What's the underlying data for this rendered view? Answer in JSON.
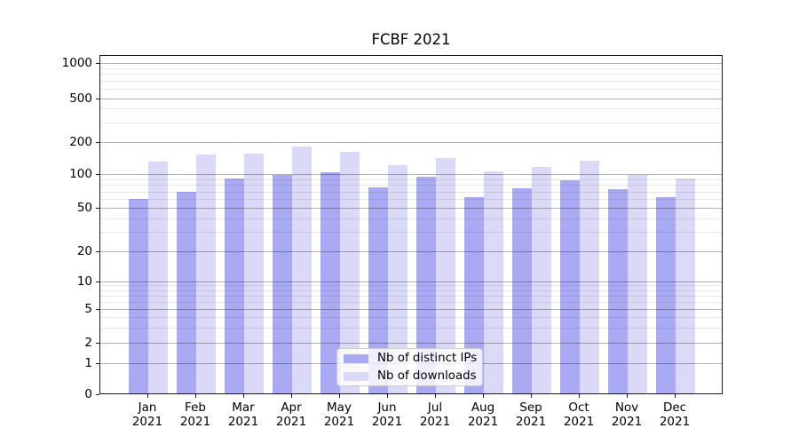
{
  "chart_data": {
    "type": "bar",
    "title": "FCBF 2021",
    "categories": [
      "Jan",
      "Feb",
      "Mar",
      "Apr",
      "May",
      "Jun",
      "Jul",
      "Aug",
      "Sep",
      "Oct",
      "Nov",
      "Dec"
    ],
    "category_year": "2021",
    "series": [
      {
        "name": "Nb of distinct IPs",
        "color": "#a9a9f4",
        "values": [
          60,
          69,
          91,
          98,
          105,
          76,
          96,
          62,
          75,
          88,
          74,
          62
        ]
      },
      {
        "name": "Nb of downloads",
        "color": "#dadaf8",
        "values": [
          132,
          153,
          155,
          181,
          162,
          122,
          141,
          107,
          118,
          133,
          99,
          92
        ]
      }
    ],
    "y_ticks": [
      0,
      1,
      2,
      5,
      10,
      20,
      50,
      100,
      200,
      500,
      1000
    ],
    "y_minor_ticks": [
      3,
      4,
      6,
      7,
      8,
      9,
      30,
      40,
      60,
      70,
      80,
      90,
      300,
      400,
      600,
      700,
      800,
      900
    ],
    "y_scale": "log",
    "ylim": [
      0,
      1175
    ],
    "grid": true,
    "legend_position": "lower center"
  },
  "colors": {
    "bar_distinct_ips": "#a9a9f4",
    "bar_downloads": "#dadaf8",
    "grid_major": "rgba(0,0,0,0.30)",
    "grid_minor": "rgba(0,0,0,0.09)",
    "spine": "#1a1a1a",
    "text": "#000000",
    "legend_border": "#cccccc",
    "legend_bg": "rgba(255,255,255,0.8)"
  }
}
